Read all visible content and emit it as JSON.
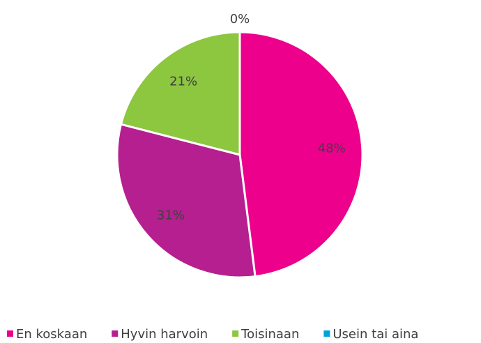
{
  "chart_data": {
    "type": "pie",
    "categories": [
      "En koskaan",
      "Hyvin harvoin",
      "Toisinaan",
      "Usein tai aina"
    ],
    "values": [
      48,
      31,
      21,
      0
    ],
    "value_labels": [
      "48%",
      "31%",
      "21%",
      "0%"
    ],
    "colors": [
      "#ec008c",
      "#b51f90",
      "#8dc63f",
      "#00a3d9"
    ],
    "legend": "bottom"
  }
}
